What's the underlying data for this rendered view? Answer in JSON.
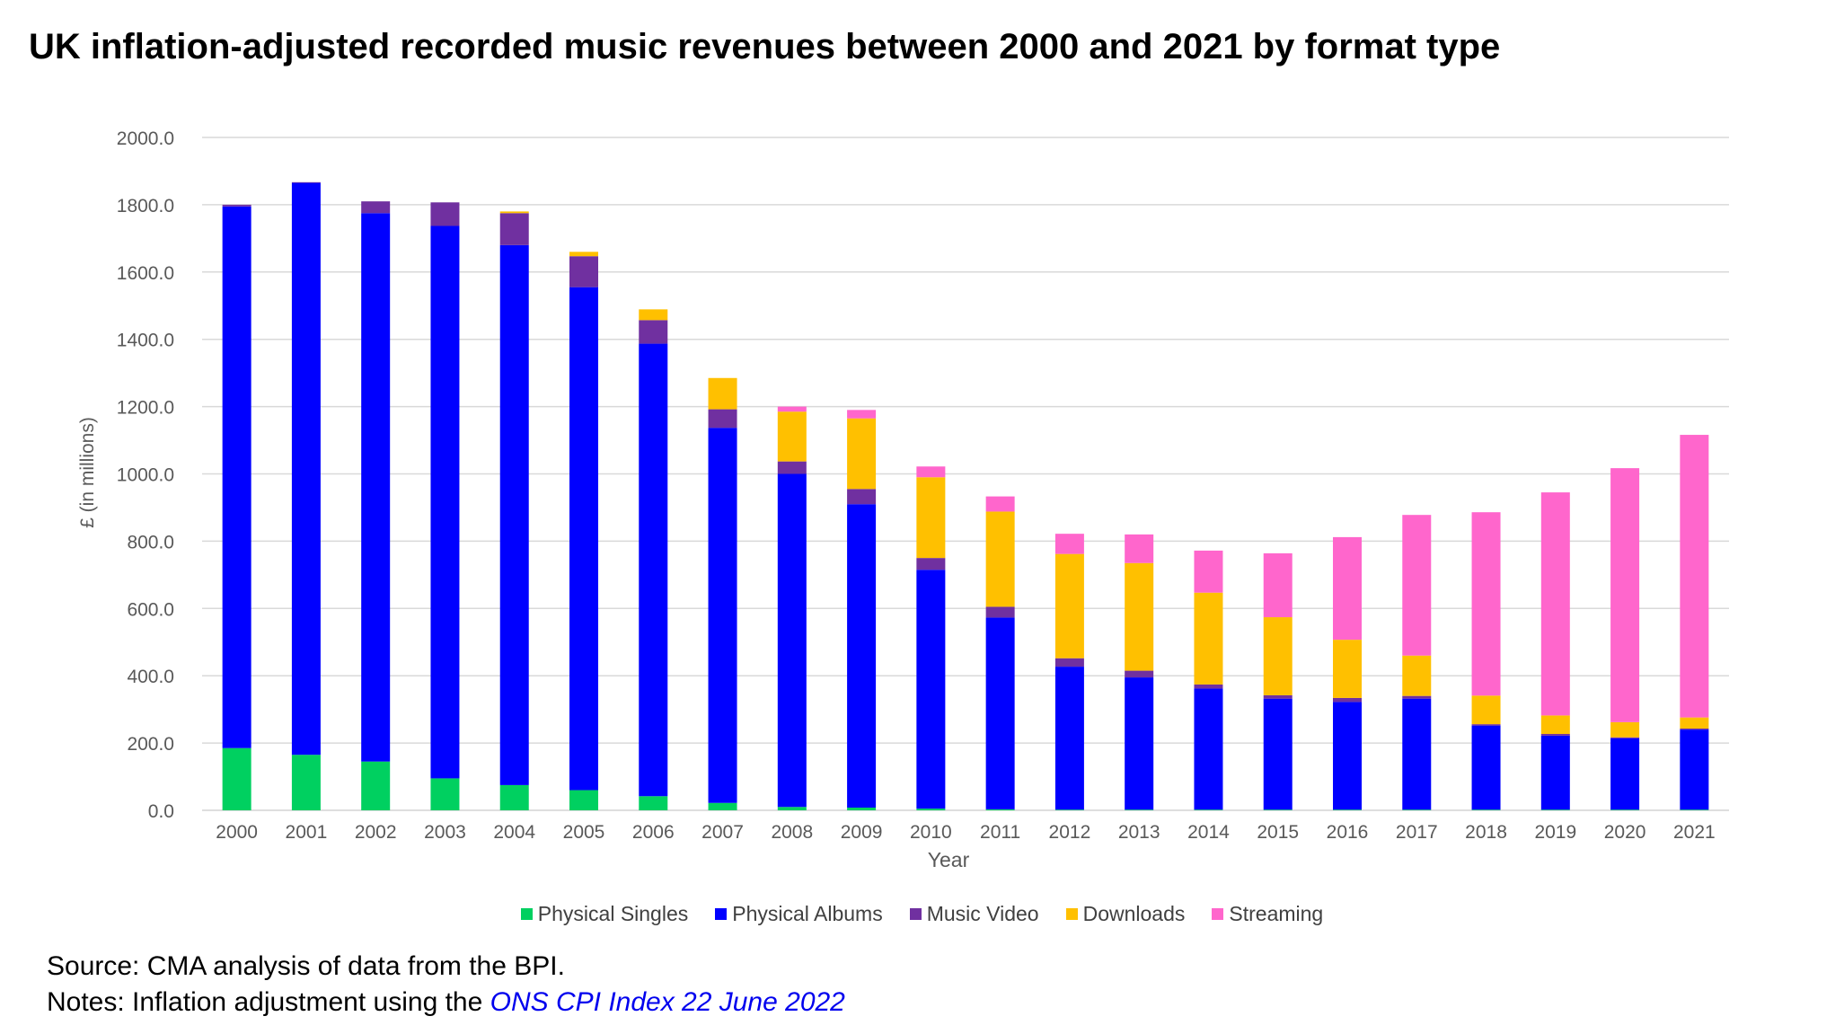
{
  "title": "UK inflation-adjusted recorded music revenues between 2000 and 2021 by format type",
  "footnotes": {
    "source": "Source: CMA analysis of data from the BPI.",
    "notes_prefix": "Notes: Inflation adjustment using the ",
    "notes_link": "ONS CPI Index 22 June 2022"
  },
  "chart_data": {
    "type": "bar",
    "stacked": true,
    "title": "UK inflation-adjusted recorded music revenues between 2000 and 2021 by format type",
    "xlabel": "Year",
    "ylabel": "£ (in millions)",
    "ylim": [
      0,
      2000
    ],
    "yticks": [
      "0.0",
      "200.0",
      "400.0",
      "600.0",
      "800.0",
      "1000.0",
      "1200.0",
      "1400.0",
      "1600.0",
      "1800.0",
      "2000.0"
    ],
    "grid": true,
    "legend_position": "bottom",
    "categories": [
      "2000",
      "2001",
      "2002",
      "2003",
      "2004",
      "2005",
      "2006",
      "2007",
      "2008",
      "2009",
      "2010",
      "2011",
      "2012",
      "2013",
      "2014",
      "2015",
      "2016",
      "2017",
      "2018",
      "2019",
      "2020",
      "2021"
    ],
    "series": [
      {
        "name": "Physical Singles",
        "color": "#00d060",
        "values": [
          185,
          165,
          145,
          95,
          75,
          60,
          42,
          22,
          10,
          8,
          5,
          3,
          2,
          2,
          2,
          2,
          2,
          2,
          2,
          2,
          2,
          2
        ]
      },
      {
        "name": "Physical Albums",
        "color": "#0000ff",
        "values": [
          1610,
          1700,
          1630,
          1642,
          1605,
          1495,
          1345,
          1115,
          990,
          902,
          710,
          570,
          425,
          393,
          360,
          330,
          320,
          330,
          250,
          220,
          212,
          238
        ]
      },
      {
        "name": "Music Video",
        "color": "#7030a0",
        "values": [
          5,
          2,
          35,
          70,
          95,
          92,
          70,
          55,
          37,
          45,
          35,
          32,
          25,
          20,
          12,
          10,
          12,
          8,
          4,
          5,
          3,
          3
        ]
      },
      {
        "name": "Downloads",
        "color": "#ffc000",
        "values": [
          0,
          0,
          0,
          0,
          5,
          13,
          32,
          93,
          148,
          210,
          240,
          283,
          310,
          320,
          273,
          232,
          173,
          120,
          85,
          55,
          45,
          33
        ]
      },
      {
        "name": "Streaming",
        "color": "#ff66cc",
        "values": [
          0,
          0,
          0,
          0,
          0,
          0,
          0,
          0,
          15,
          25,
          32,
          45,
          60,
          85,
          125,
          190,
          305,
          418,
          545,
          663,
          755,
          840
        ]
      }
    ]
  }
}
